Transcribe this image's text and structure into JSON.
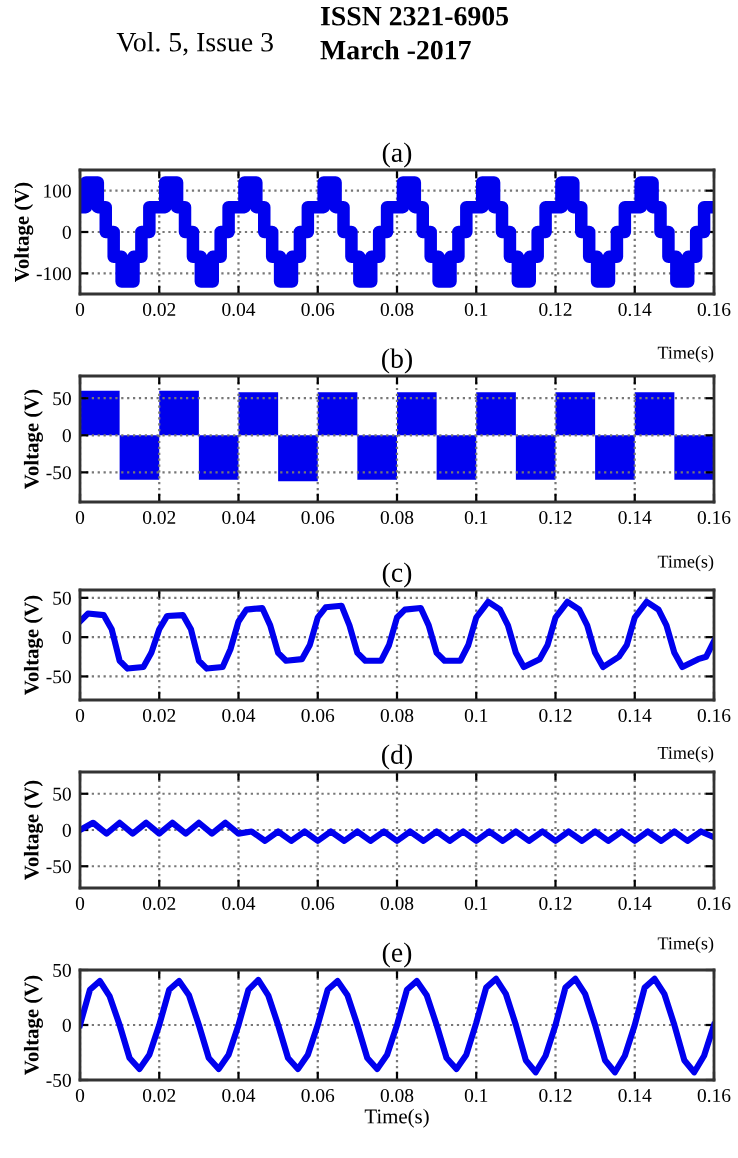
{
  "chart_data": [
    {
      "type": "step",
      "title": "(a)",
      "xlabel": "Time(s)",
      "ylabel": "Voltage (V)",
      "annotations": [
        "Vol. 5, Issue 3",
        "ISSN 2321-6905",
        "March -2017"
      ],
      "xlim": [
        0,
        0.16
      ],
      "ylim": [
        -150,
        150
      ],
      "xticks": [
        0,
        0.02,
        0.04,
        0.06,
        0.08,
        0.1,
        0.12,
        0.14,
        0.16
      ],
      "yticks": [
        -100,
        0,
        100
      ],
      "grid": true,
      "line_style": "solid",
      "series": [
        {
          "color": "#0000ee",
          "x": [
            0,
            0.0015,
            0.0045,
            0.0065,
            0.0085,
            0.0105,
            0.0135,
            0.0155,
            0.0175,
            0.0215,
            0.0245,
            0.0265,
            0.0285,
            0.0305,
            0.0335,
            0.0355,
            0.0375,
            0.0415,
            0.0445,
            0.0465,
            0.0485,
            0.0505,
            0.0535,
            0.0555,
            0.0575,
            0.0615,
            0.0645,
            0.0665,
            0.0685,
            0.0705,
            0.0735,
            0.0755,
            0.0775,
            0.0815,
            0.0845,
            0.0865,
            0.0885,
            0.0905,
            0.0935,
            0.0955,
            0.0975,
            0.1015,
            0.1045,
            0.1065,
            0.1085,
            0.1105,
            0.1135,
            0.1155,
            0.1175,
            0.1215,
            0.1245,
            0.1265,
            0.1285,
            0.1305,
            0.1335,
            0.1355,
            0.1375,
            0.1415,
            0.1445,
            0.1465,
            0.1485,
            0.1505,
            0.1535,
            0.1555,
            0.1575,
            0.16
          ],
          "values": [
            60,
            120,
            60,
            0,
            -60,
            -120,
            -60,
            0,
            60,
            120,
            60,
            0,
            -60,
            -120,
            -60,
            0,
            60,
            120,
            60,
            0,
            -60,
            -120,
            -60,
            0,
            60,
            120,
            60,
            0,
            -60,
            -120,
            -60,
            0,
            60,
            120,
            60,
            0,
            -60,
            -120,
            -60,
            0,
            60,
            120,
            60,
            0,
            -60,
            -120,
            -60,
            0,
            60,
            120,
            60,
            0,
            -60,
            -120,
            -60,
            0,
            60,
            120,
            60,
            0,
            -60,
            -120,
            -60,
            0,
            60,
            60
          ]
        }
      ]
    },
    {
      "type": "area",
      "title": "(b)",
      "xlabel": "Time(s)",
      "ylabel": "Voltage (V)",
      "xlim": [
        0,
        0.16
      ],
      "ylim": [
        -90,
        80
      ],
      "xticks": [
        0,
        0.02,
        0.04,
        0.06,
        0.08,
        0.1,
        0.12,
        0.14,
        0.16
      ],
      "yticks": [
        -50,
        0,
        50
      ],
      "grid": true,
      "series": [
        {
          "color": "#0000ee",
          "x": [
            0,
            0,
            0.01,
            0.01,
            0.02,
            0.02,
            0.03,
            0.03,
            0.04,
            0.04,
            0.05,
            0.05,
            0.06,
            0.06,
            0.07,
            0.07,
            0.08,
            0.08,
            0.09,
            0.09,
            0.1,
            0.1,
            0.11,
            0.11,
            0.12,
            0.12,
            0.13,
            0.13,
            0.14,
            0.14,
            0.15,
            0.15,
            0.16,
            0.16
          ],
          "values": [
            0,
            60,
            60,
            -60,
            -60,
            60,
            60,
            -60,
            -60,
            58,
            58,
            -62,
            -62,
            58,
            58,
            -60,
            -60,
            58,
            58,
            -60,
            -60,
            58,
            58,
            -60,
            -60,
            58,
            58,
            -60,
            -60,
            58,
            58,
            -60,
            -60,
            0
          ]
        }
      ]
    },
    {
      "type": "line",
      "title": "(c)",
      "xlabel": "Time(s)",
      "ylabel": "Voltage (V)",
      "xlim": [
        0,
        0.16
      ],
      "ylim": [
        -80,
        60
      ],
      "xticks": [
        0,
        0.02,
        0.04,
        0.06,
        0.08,
        0.1,
        0.12,
        0.14,
        0.16
      ],
      "yticks": [
        -50,
        0,
        50
      ],
      "grid": true,
      "line_style": "solid",
      "series": [
        {
          "color": "#0000ee",
          "x": [
            0,
            0.002,
            0.006,
            0.008,
            0.01,
            0.012,
            0.016,
            0.018,
            0.02,
            0.022,
            0.026,
            0.028,
            0.03,
            0.032,
            0.036,
            0.038,
            0.04,
            0.042,
            0.046,
            0.048,
            0.05,
            0.052,
            0.056,
            0.058,
            0.06,
            0.062,
            0.066,
            0.068,
            0.07,
            0.072,
            0.076,
            0.078,
            0.08,
            0.082,
            0.086,
            0.088,
            0.09,
            0.092,
            0.096,
            0.098,
            0.1,
            0.103,
            0.106,
            0.108,
            0.11,
            0.112,
            0.116,
            0.118,
            0.12,
            0.123,
            0.126,
            0.128,
            0.13,
            0.132,
            0.136,
            0.138,
            0.14,
            0.143,
            0.146,
            0.148,
            0.15,
            0.152,
            0.156,
            0.158,
            0.16
          ],
          "values": [
            20,
            30,
            28,
            10,
            -30,
            -40,
            -38,
            -20,
            10,
            27,
            28,
            10,
            -30,
            -40,
            -38,
            -15,
            20,
            35,
            37,
            15,
            -20,
            -30,
            -28,
            -10,
            25,
            38,
            40,
            15,
            -20,
            -30,
            -30,
            -10,
            25,
            35,
            37,
            15,
            -20,
            -30,
            -30,
            -10,
            25,
            45,
            35,
            15,
            -20,
            -38,
            -28,
            -10,
            25,
            45,
            35,
            15,
            -20,
            -38,
            -25,
            -10,
            25,
            45,
            35,
            15,
            -20,
            -38,
            -28,
            -25,
            -5
          ]
        }
      ]
    },
    {
      "type": "line",
      "title": "(d)",
      "xlabel": "Time(s)",
      "ylabel": "Voltage (V)",
      "xlim": [
        0,
        0.16
      ],
      "ylim": [
        -80,
        80
      ],
      "xticks": [
        0,
        0.02,
        0.04,
        0.06,
        0.08,
        0.1,
        0.12,
        0.14,
        0.16
      ],
      "yticks": [
        -50,
        0,
        50
      ],
      "grid": true,
      "line_style": "solid",
      "series": [
        {
          "color": "#0000ee",
          "x": [
            0,
            0.0033,
            0.0067,
            0.01,
            0.0133,
            0.0167,
            0.02,
            0.0233,
            0.0267,
            0.03,
            0.0333,
            0.0367,
            0.04,
            0.0433,
            0.0467,
            0.05,
            0.0533,
            0.0567,
            0.06,
            0.0633,
            0.0667,
            0.07,
            0.0733,
            0.0767,
            0.08,
            0.0833,
            0.0867,
            0.09,
            0.0933,
            0.0967,
            0.1,
            0.1033,
            0.1067,
            0.11,
            0.1133,
            0.1167,
            0.12,
            0.1233,
            0.1267,
            0.13,
            0.1333,
            0.1367,
            0.14,
            0.1433,
            0.1467,
            0.15,
            0.1533,
            0.1567,
            0.16
          ],
          "values": [
            0,
            10,
            -5,
            10,
            -5,
            10,
            -5,
            10,
            -5,
            10,
            -5,
            10,
            -5,
            -2,
            -15,
            -2,
            -15,
            -2,
            -15,
            -2,
            -15,
            -2,
            -15,
            -2,
            -15,
            -2,
            -15,
            -2,
            -15,
            -2,
            -15,
            -2,
            -15,
            -2,
            -15,
            -2,
            -15,
            -2,
            -15,
            -2,
            -15,
            -2,
            -15,
            -2,
            -15,
            -2,
            -15,
            -2,
            -10
          ]
        }
      ]
    },
    {
      "type": "line",
      "title": "(e)",
      "xlabel": "Time(s)",
      "ylabel": "Voltage (V)",
      "xlim": [
        0,
        0.16
      ],
      "ylim": [
        -50,
        50
      ],
      "xticks": [
        0,
        0.02,
        0.04,
        0.06,
        0.08,
        0.1,
        0.12,
        0.14,
        0.16
      ],
      "yticks": [
        -50,
        0,
        50
      ],
      "grid": true,
      "line_style": "solid",
      "series": [
        {
          "color": "#0000ee",
          "x": [
            0,
            0.0025,
            0.005,
            0.0075,
            0.01,
            0.0125,
            0.015,
            0.0175,
            0.02,
            0.0225,
            0.025,
            0.0275,
            0.03,
            0.0325,
            0.035,
            0.0375,
            0.04,
            0.0425,
            0.045,
            0.0475,
            0.05,
            0.0525,
            0.055,
            0.0575,
            0.06,
            0.0625,
            0.065,
            0.0675,
            0.07,
            0.0725,
            0.075,
            0.0775,
            0.08,
            0.0825,
            0.085,
            0.0875,
            0.09,
            0.0925,
            0.095,
            0.0975,
            0.1,
            0.1025,
            0.105,
            0.1075,
            0.11,
            0.1125,
            0.115,
            0.1175,
            0.12,
            0.1225,
            0.125,
            0.1275,
            0.13,
            0.1325,
            0.135,
            0.1375,
            0.14,
            0.1425,
            0.145,
            0.1475,
            0.15,
            0.1525,
            0.155,
            0.1575,
            0.16
          ],
          "values": [
            0,
            32,
            40,
            26,
            0,
            -30,
            -40,
            -27,
            0,
            32,
            40,
            27,
            0,
            -30,
            -40,
            -27,
            0,
            32,
            41,
            27,
            0,
            -30,
            -40,
            -27,
            0,
            32,
            40,
            27,
            0,
            -30,
            -40,
            -27,
            0,
            32,
            40,
            27,
            0,
            -30,
            -40,
            -27,
            2,
            34,
            42,
            28,
            0,
            -32,
            -43,
            -28,
            0,
            34,
            42,
            28,
            0,
            -32,
            -43,
            -28,
            0,
            34,
            42,
            28,
            0,
            -32,
            -43,
            -28,
            0
          ]
        }
      ]
    }
  ]
}
